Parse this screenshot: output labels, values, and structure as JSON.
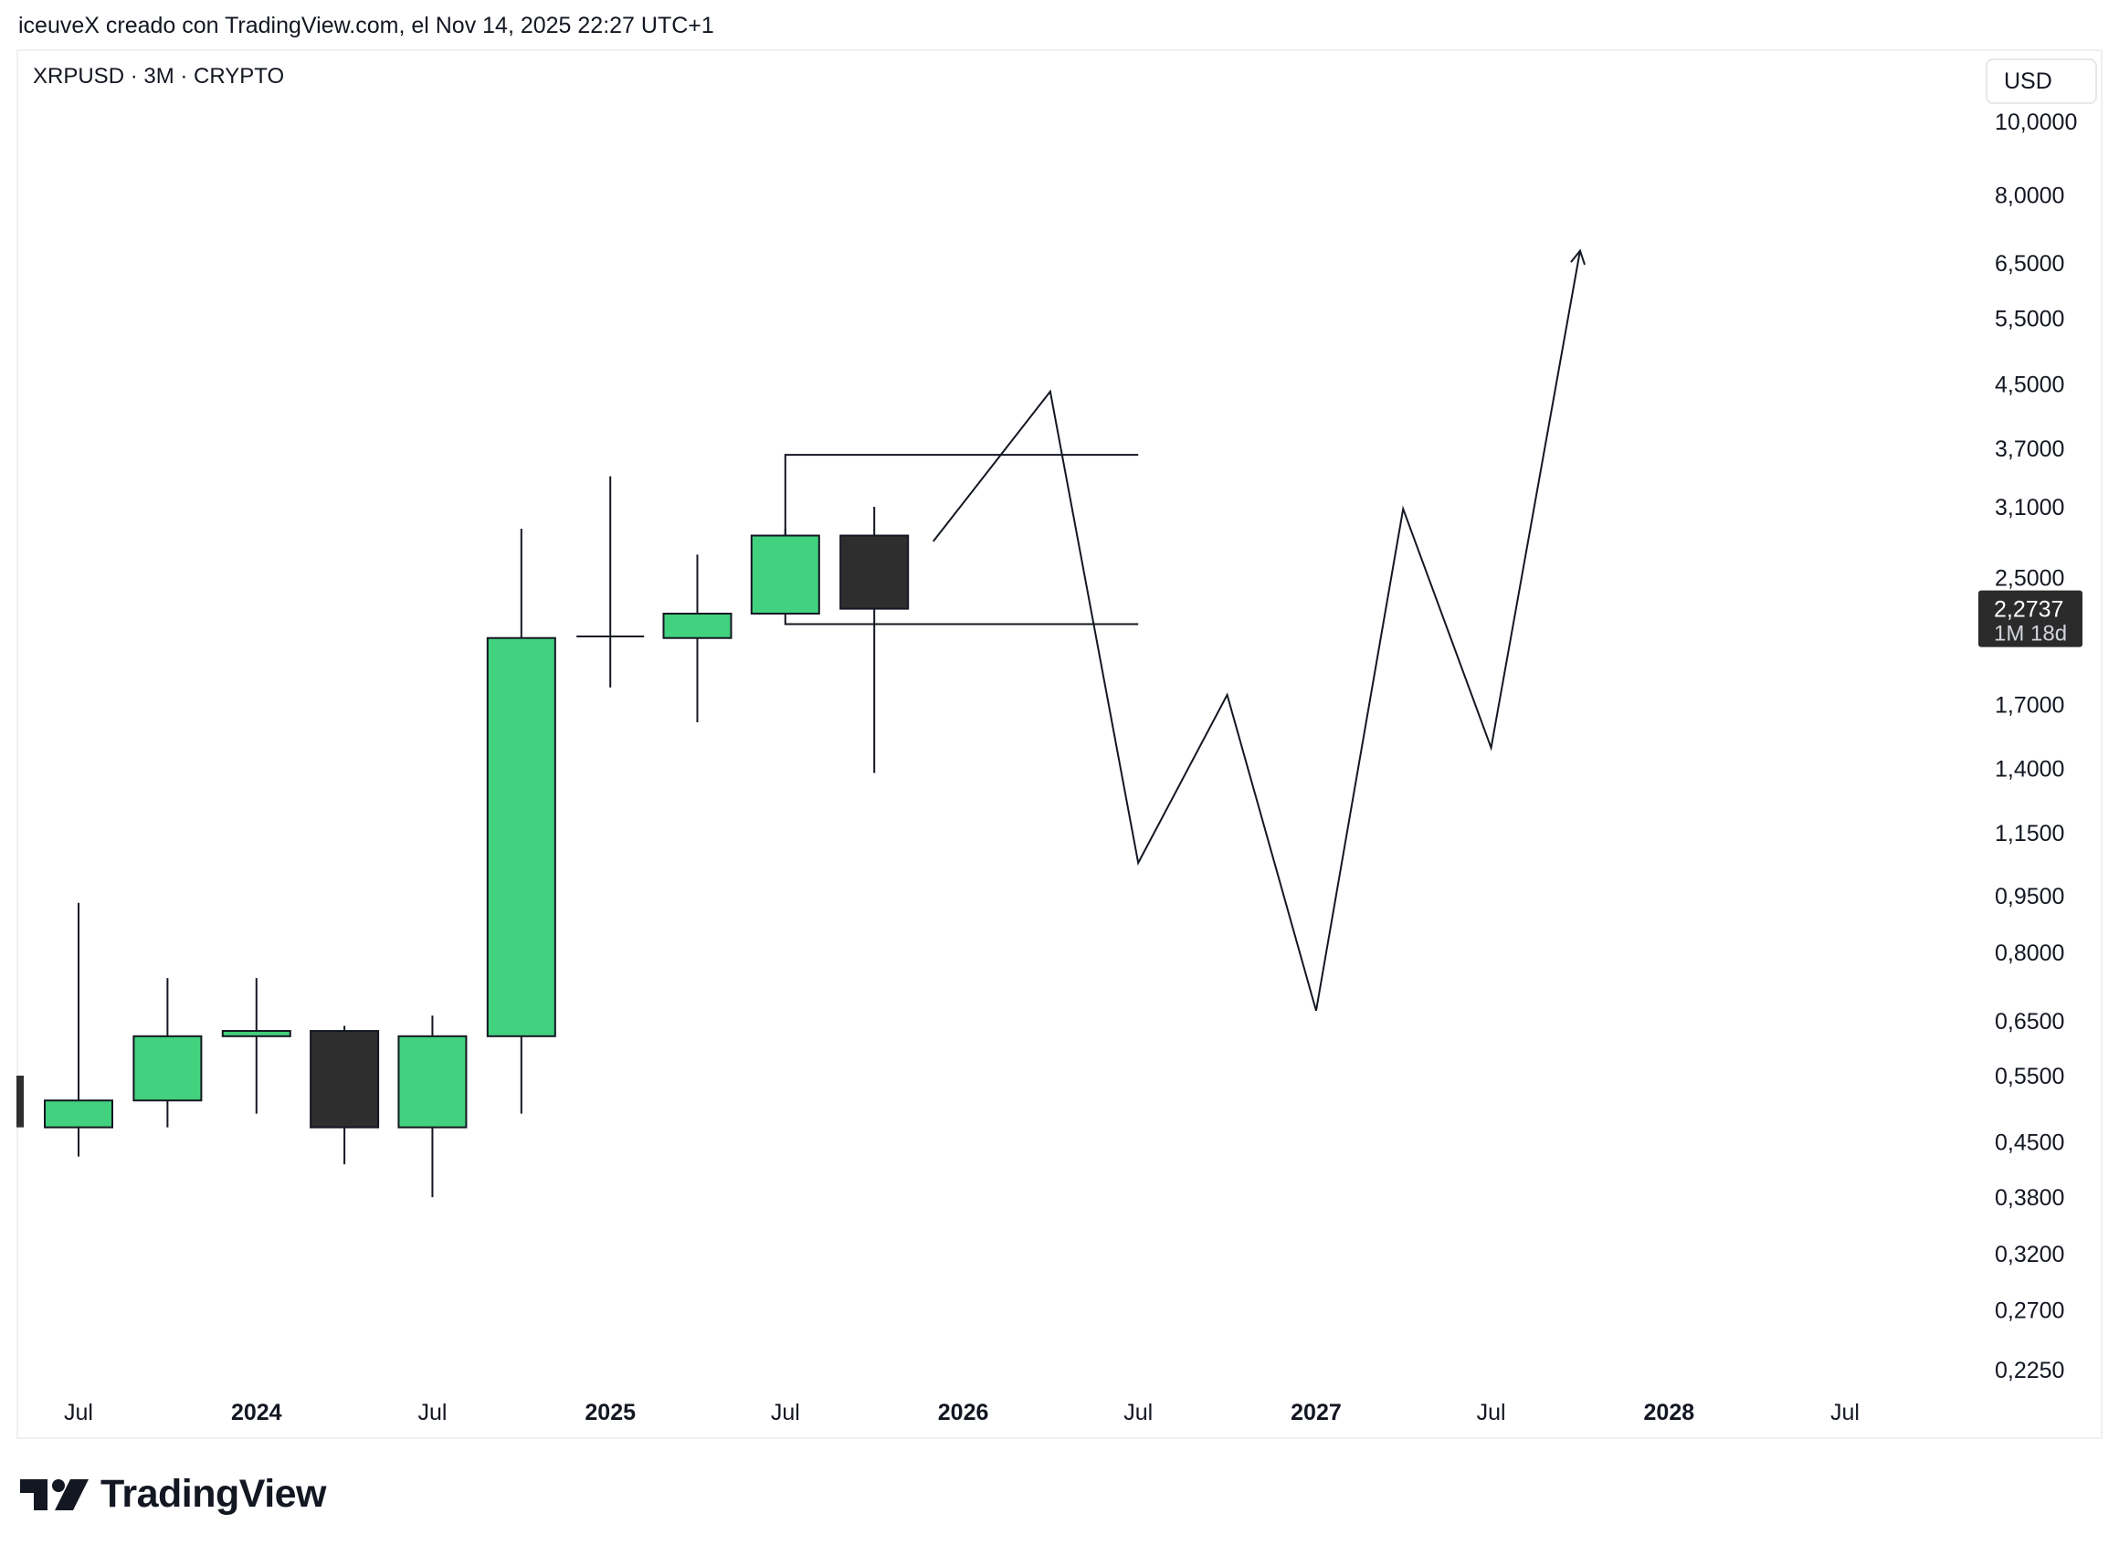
{
  "header": {
    "attribution": "iceuveX creado con TradingView.com, el Nov 14, 2025 22:27 UTC+1",
    "symbol": "XRPUSD · 3M · CRYPTO",
    "currency": "USD"
  },
  "brand": {
    "name": "TradingView"
  },
  "colors": {
    "up": "#42d17e",
    "down": "#2e2e2e",
    "line": "#131722",
    "badge_bg": "#2b2b2b",
    "badge_text": "#ffffff"
  },
  "chart_data": {
    "type": "candlestick",
    "scale": "log",
    "ylim": [
      0.21,
      11.5
    ],
    "y_ticks": [
      "10,0000",
      "8,0000",
      "6,5000",
      "5,5000",
      "4,5000",
      "3,7000",
      "3,1000",
      "2,5000",
      "1,7000",
      "1,4000",
      "1,1500",
      "0,9500",
      "0,8000",
      "0,6500",
      "0,5500",
      "0,4500",
      "0,3800",
      "0,3200",
      "0,2700",
      "0,2250"
    ],
    "x_ticks": [
      {
        "date": "2023-07-01",
        "label": "Jul",
        "bold": false
      },
      {
        "date": "2024-01-01",
        "label": "2024",
        "bold": true
      },
      {
        "date": "2024-07-01",
        "label": "Jul",
        "bold": false
      },
      {
        "date": "2025-01-01",
        "label": "2025",
        "bold": true
      },
      {
        "date": "2025-07-01",
        "label": "Jul",
        "bold": false
      },
      {
        "date": "2026-01-01",
        "label": "2026",
        "bold": true
      },
      {
        "date": "2026-07-01",
        "label": "Jul",
        "bold": false
      },
      {
        "date": "2027-01-01",
        "label": "2027",
        "bold": true
      },
      {
        "date": "2027-07-01",
        "label": "Jul",
        "bold": false
      },
      {
        "date": "2028-01-01",
        "label": "2028",
        "bold": true
      },
      {
        "date": "2028-07-01",
        "label": "Jul",
        "bold": false
      }
    ],
    "candles": [
      {
        "date": "2023-07-01",
        "open": 0.47,
        "high": 0.93,
        "low": 0.43,
        "close": 0.51
      },
      {
        "date": "2023-10-01",
        "open": 0.51,
        "high": 0.74,
        "low": 0.47,
        "close": 0.62
      },
      {
        "date": "2024-01-01",
        "open": 0.62,
        "high": 0.74,
        "low": 0.49,
        "close": 0.63
      },
      {
        "date": "2024-04-01",
        "open": 0.63,
        "high": 0.64,
        "low": 0.42,
        "close": 0.47
      },
      {
        "date": "2024-07-01",
        "open": 0.47,
        "high": 0.66,
        "low": 0.38,
        "close": 0.62
      },
      {
        "date": "2024-10-01",
        "open": 0.62,
        "high": 2.9,
        "low": 0.49,
        "close": 2.08
      },
      {
        "date": "2025-01-01",
        "open": 2.09,
        "high": 3.4,
        "low": 1.79,
        "close": 2.08
      },
      {
        "date": "2025-04-01",
        "open": 2.08,
        "high": 2.68,
        "low": 1.61,
        "close": 2.24
      },
      {
        "date": "2025-07-01",
        "open": 2.24,
        "high": 2.9,
        "low": 2.24,
        "close": 2.84
      },
      {
        "date": "2025-10-01",
        "open": 2.84,
        "high": 3.1,
        "low": 1.38,
        "close": 2.2737
      }
    ],
    "range_box": {
      "start": "2025-07-01",
      "end": "2026-07-01",
      "top": 3.63,
      "bottom": 2.17
    },
    "projection": {
      "path": [
        {
          "date": "2025-12-01",
          "value": 2.79
        },
        {
          "date": "2026-04-01",
          "value": 4.4
        },
        {
          "date": "2026-07-01",
          "value": 1.05
        },
        {
          "date": "2026-10-01",
          "value": 1.75
        },
        {
          "date": "2027-01-01",
          "value": 0.67
        },
        {
          "date": "2027-04-01",
          "value": 3.08
        },
        {
          "date": "2027-07-01",
          "value": 1.49
        },
        {
          "date": "2027-10-01",
          "value": 6.75
        }
      ],
      "arrow_head": true
    },
    "last_price": {
      "value": 2.2737,
      "label": "2,2737",
      "countdown": "1M 18d"
    }
  }
}
